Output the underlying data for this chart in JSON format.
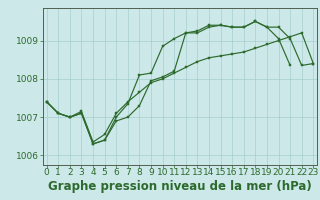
{
  "title": "Graphe pression niveau de la mer (hPa)",
  "hours": [
    0,
    1,
    2,
    3,
    4,
    5,
    6,
    7,
    8,
    9,
    10,
    11,
    12,
    13,
    14,
    15,
    16,
    17,
    18,
    19,
    20,
    21,
    22,
    23
  ],
  "line1": [
    1007.4,
    1007.1,
    1007.0,
    1007.1,
    1006.3,
    1006.4,
    1006.9,
    1007.0,
    1007.3,
    1007.95,
    1008.05,
    1008.2,
    1009.2,
    1009.2,
    1009.35,
    1009.4,
    1009.35,
    1009.35,
    1009.5,
    1009.35,
    1009.35,
    1009.05,
    1008.35,
    1008.4
  ],
  "line2": [
    1007.4,
    1007.1,
    1007.0,
    1007.1,
    1006.3,
    1006.4,
    1007.0,
    1007.35,
    1008.1,
    1008.15,
    1008.85,
    1009.05,
    1009.2,
    1009.25,
    1009.4,
    1009.4,
    1009.35,
    1009.35,
    1009.5,
    1009.35,
    1009.05,
    1008.35,
    null,
    null
  ],
  "line3": [
    1007.4,
    1007.1,
    1007.0,
    1007.15,
    1006.35,
    1006.55,
    1007.1,
    1007.4,
    1007.65,
    1007.9,
    1008.0,
    1008.15,
    1008.3,
    1008.45,
    1008.55,
    1008.6,
    1008.65,
    1008.7,
    1008.8,
    1008.9,
    1009.0,
    1009.1,
    1009.2,
    1008.4
  ],
  "line_color": "#2d6a2d",
  "bg_color": "#cce8e8",
  "grid_color": "#9fc8c8",
  "ylim": [
    1005.75,
    1009.85
  ],
  "yticks": [
    1006,
    1007,
    1008,
    1009
  ],
  "xlim": [
    -0.3,
    23.3
  ],
  "title_fontsize": 8.5,
  "tick_fontsize": 6.5,
  "marker": "s",
  "markersize": 2.0,
  "linewidth": 0.85
}
